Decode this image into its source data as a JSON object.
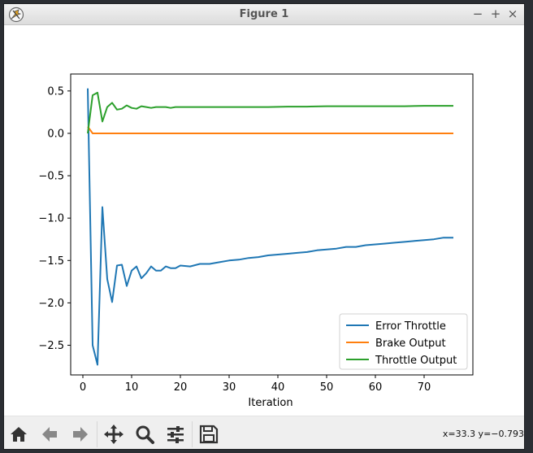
{
  "window": {
    "title": "Figure 1",
    "controls": {
      "minimize": "−",
      "maximize": "+",
      "close": "×"
    }
  },
  "toolbar": {
    "buttons": [
      "home-icon",
      "back-icon",
      "forward-icon",
      "pan-icon",
      "zoom-icon",
      "configure-subplots-icon",
      "save-icon"
    ],
    "coords": "x=33.3 y=−0.793"
  },
  "colors": {
    "error_throttle": "#1f77b4",
    "brake_output": "#ff7f0e",
    "throttle_output": "#2ca02c"
  },
  "chart_data": {
    "type": "line",
    "title": "",
    "xlabel": "Iteration",
    "ylabel": "",
    "xlim": [
      -2.5,
      80
    ],
    "ylim": [
      -2.85,
      0.7
    ],
    "x_ticks": [
      0,
      10,
      20,
      30,
      40,
      50,
      60,
      70
    ],
    "y_ticks": [
      0.5,
      0.0,
      -0.5,
      -1.0,
      -1.5,
      -2.0,
      -2.5
    ],
    "y_tick_labels": [
      "0.5",
      "0.0",
      "−0.5",
      "−1.0",
      "−1.5",
      "−2.0",
      "−2.5"
    ],
    "grid": false,
    "legend": "lower-right",
    "series": [
      {
        "name": "Error Throttle",
        "color": "#1f77b4",
        "x": [
          1,
          2,
          3,
          4,
          5,
          6,
          7,
          8,
          9,
          10,
          11,
          12,
          13,
          14,
          15,
          16,
          17,
          18,
          19,
          20,
          22,
          24,
          26,
          28,
          30,
          32,
          34,
          36,
          38,
          40,
          42,
          44,
          46,
          48,
          50,
          52,
          54,
          56,
          58,
          60,
          62,
          64,
          66,
          68,
          70,
          72,
          74,
          76
        ],
        "y": [
          0.53,
          -2.5,
          -2.73,
          -0.87,
          -1.72,
          -1.99,
          -1.56,
          -1.55,
          -1.8,
          -1.62,
          -1.57,
          -1.71,
          -1.65,
          -1.57,
          -1.62,
          -1.62,
          -1.57,
          -1.59,
          -1.59,
          -1.56,
          -1.57,
          -1.54,
          -1.54,
          -1.52,
          -1.5,
          -1.49,
          -1.47,
          -1.46,
          -1.44,
          -1.43,
          -1.42,
          -1.41,
          -1.4,
          -1.38,
          -1.37,
          -1.36,
          -1.34,
          -1.34,
          -1.32,
          -1.31,
          -1.3,
          -1.29,
          -1.28,
          -1.27,
          -1.26,
          -1.25,
          -1.23,
          -1.23
        ]
      },
      {
        "name": "Brake Output",
        "color": "#ff7f0e",
        "x": [
          1,
          2,
          76
        ],
        "y": [
          0.08,
          0.0,
          0.0
        ]
      },
      {
        "name": "Throttle Output",
        "color": "#2ca02c",
        "x": [
          1,
          2,
          3,
          4,
          5,
          6,
          7,
          8,
          9,
          10,
          11,
          12,
          13,
          14,
          15,
          16,
          17,
          18,
          19,
          20,
          22,
          24,
          26,
          28,
          30,
          34,
          38,
          42,
          46,
          50,
          54,
          58,
          62,
          66,
          70,
          72,
          74,
          76
        ],
        "y": [
          0.0,
          0.45,
          0.48,
          0.14,
          0.31,
          0.36,
          0.28,
          0.29,
          0.33,
          0.3,
          0.29,
          0.32,
          0.31,
          0.3,
          0.31,
          0.31,
          0.31,
          0.3,
          0.31,
          0.31,
          0.31,
          0.31,
          0.31,
          0.31,
          0.31,
          0.31,
          0.31,
          0.315,
          0.315,
          0.32,
          0.32,
          0.32,
          0.32,
          0.32,
          0.325,
          0.325,
          0.325,
          0.325
        ]
      }
    ]
  }
}
